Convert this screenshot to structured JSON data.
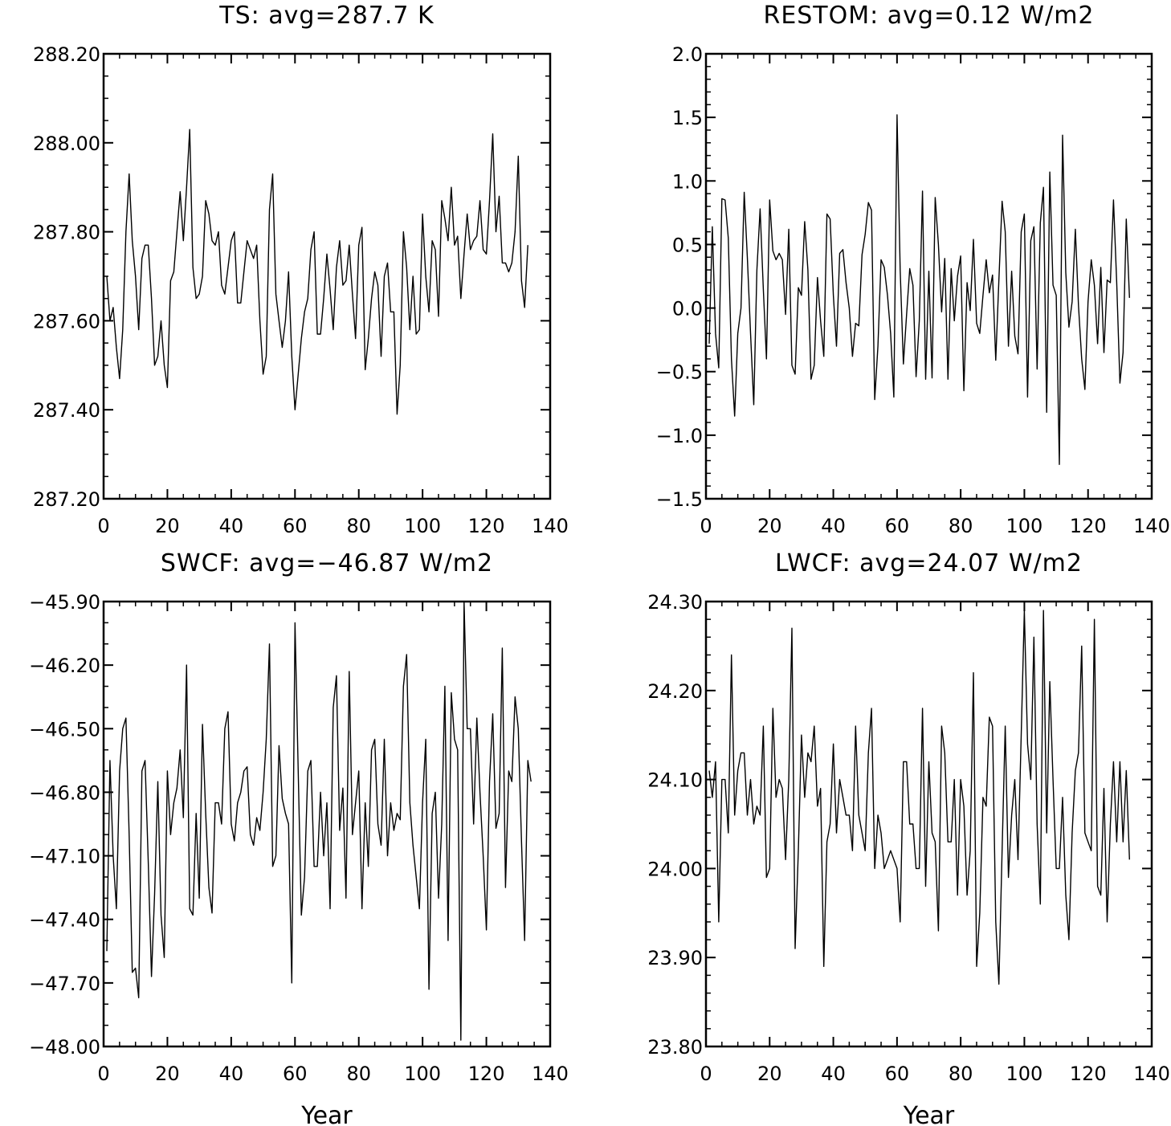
{
  "chart_data": [
    {
      "type": "line",
      "title": "TS: avg=287.7 K",
      "xlabel": "",
      "ylabel": "",
      "xlim": [
        0,
        140
      ],
      "ylim": [
        287.2,
        288.2
      ],
      "xticks": [
        0,
        20,
        40,
        60,
        80,
        100,
        120,
        140
      ],
      "xtick_labels": [
        "0",
        "20",
        "40",
        "60",
        "80",
        "100",
        "120",
        "140"
      ],
      "yticks": [
        287.2,
        287.4,
        287.6,
        287.8,
        288.0,
        288.2
      ],
      "ytick_labels": [
        "287.20",
        "287.40",
        "287.60",
        "287.80",
        "288.00",
        "288.20"
      ],
      "y_minor_step": 0.05,
      "x_start": 1,
      "x_step": 1,
      "values": [
        287.7,
        287.6,
        287.63,
        287.54,
        287.47,
        287.58,
        287.8,
        287.93,
        287.78,
        287.7,
        287.58,
        287.74,
        287.77,
        287.77,
        287.65,
        287.5,
        287.52,
        287.6,
        287.5,
        287.45,
        287.69,
        287.71,
        287.8,
        287.89,
        287.78,
        287.9,
        288.03,
        287.72,
        287.65,
        287.66,
        287.7,
        287.87,
        287.84,
        287.78,
        287.77,
        287.8,
        287.68,
        287.66,
        287.72,
        287.78,
        287.8,
        287.64,
        287.64,
        287.71,
        287.78,
        287.76,
        287.74,
        287.77,
        287.6,
        287.48,
        287.52,
        287.85,
        287.93,
        287.66,
        287.6,
        287.54,
        287.6,
        287.71,
        287.52,
        287.4,
        287.48,
        287.56,
        287.62,
        287.65,
        287.76,
        287.8,
        287.57,
        287.57,
        287.65,
        287.75,
        287.67,
        287.58,
        287.72,
        287.78,
        287.68,
        287.69,
        287.77,
        287.66,
        287.56,
        287.77,
        287.81,
        287.49,
        287.56,
        287.65,
        287.71,
        287.68,
        287.52,
        287.7,
        287.73,
        287.62,
        287.62,
        287.39,
        287.5,
        287.8,
        287.72,
        287.58,
        287.7,
        287.57,
        287.58,
        287.84,
        287.7,
        287.62,
        287.78,
        287.76,
        287.61,
        287.87,
        287.83,
        287.78,
        287.9,
        287.77,
        287.79,
        287.65,
        287.75,
        287.84,
        287.76,
        287.78,
        287.79,
        287.87,
        287.76,
        287.75,
        287.87,
        288.02,
        287.8,
        287.88,
        287.73,
        287.73,
        287.71,
        287.73,
        287.8,
        287.97,
        287.69,
        287.63,
        287.77
      ]
    },
    {
      "type": "line",
      "title": "RESTOM: avg=0.12 W/m2",
      "xlabel": "",
      "ylabel": "",
      "xlim": [
        0,
        140
      ],
      "ylim": [
        -1.5,
        2.0
      ],
      "xticks": [
        0,
        20,
        40,
        60,
        80,
        100,
        120,
        140
      ],
      "xtick_labels": [
        "0",
        "20",
        "40",
        "60",
        "80",
        "100",
        "120",
        "140"
      ],
      "yticks": [
        -1.5,
        -1.0,
        -0.5,
        0.0,
        0.5,
        1.0,
        1.5,
        2.0
      ],
      "ytick_labels": [
        "−1.5",
        "−1.0",
        "−0.5",
        "0.0",
        "0.5",
        "1.0",
        "1.5",
        "2.0"
      ],
      "y_minor_step": 0.1,
      "x_start": 1,
      "x_step": 1,
      "values": [
        -0.28,
        0.64,
        -0.2,
        -0.47,
        0.86,
        0.85,
        0.55,
        -0.4,
        -0.85,
        -0.2,
        0.0,
        0.91,
        0.4,
        -0.2,
        -0.76,
        0.3,
        0.78,
        0.15,
        -0.4,
        0.85,
        0.45,
        0.38,
        0.43,
        0.38,
        -0.05,
        0.62,
        -0.45,
        -0.52,
        0.16,
        0.1,
        0.68,
        0.3,
        -0.56,
        -0.45,
        0.24,
        -0.1,
        -0.38,
        0.74,
        0.7,
        0.1,
        -0.3,
        0.43,
        0.46,
        0.2,
        0.0,
        -0.38,
        -0.12,
        -0.14,
        0.42,
        0.58,
        0.83,
        0.77,
        -0.72,
        -0.3,
        0.38,
        0.32,
        0.1,
        -0.2,
        -0.7,
        1.52,
        0.3,
        -0.44,
        -0.05,
        0.31,
        0.18,
        -0.54,
        -0.1,
        0.92,
        -0.56,
        0.29,
        -0.55,
        0.87,
        0.5,
        -0.03,
        0.39,
        -0.56,
        0.31,
        -0.1,
        0.25,
        0.41,
        -0.65,
        0.2,
        -0.02,
        0.54,
        -0.12,
        -0.2,
        0.1,
        0.38,
        0.12,
        0.26,
        -0.41,
        0.22,
        0.84,
        0.6,
        -0.3,
        0.29,
        -0.22,
        -0.36,
        0.6,
        0.74,
        -0.7,
        0.53,
        0.64,
        -0.48,
        0.67,
        0.95,
        -0.82,
        1.07,
        0.18,
        0.1,
        -1.23,
        1.36,
        0.28,
        -0.15,
        0.05,
        0.62,
        0.02,
        -0.4,
        -0.64,
        0.05,
        0.38,
        0.18,
        -0.28,
        0.32,
        -0.35,
        0.22,
        0.2,
        0.85,
        0.2,
        -0.59,
        -0.35,
        0.7,
        0.08
      ]
    },
    {
      "type": "line",
      "title": "SWCF: avg=−46.87 W/m2",
      "xlabel": "Year",
      "ylabel": "",
      "xlim": [
        0,
        140
      ],
      "ylim": [
        -48.0,
        -45.9
      ],
      "xticks": [
        0,
        20,
        40,
        60,
        80,
        100,
        120,
        140
      ],
      "xtick_labels": [
        "0",
        "20",
        "40",
        "60",
        "80",
        "100",
        "120",
        "140"
      ],
      "yticks": [
        -48.0,
        -47.7,
        -47.4,
        -47.1,
        -46.8,
        -46.5,
        -46.2,
        -45.9
      ],
      "ytick_labels": [
        "−48.00",
        "−47.70",
        "−47.40",
        "−47.10",
        "−46.80",
        "−46.50",
        "−46.20",
        "−45.90"
      ],
      "y_minor_step": 0.1,
      "x_start": 1,
      "x_step": 1,
      "values": [
        -47.55,
        -46.65,
        -47.1,
        -47.35,
        -46.7,
        -46.5,
        -46.45,
        -47.0,
        -47.65,
        -47.63,
        -47.77,
        -46.7,
        -46.65,
        -47.13,
        -47.67,
        -47.28,
        -46.75,
        -47.38,
        -47.58,
        -46.7,
        -47.0,
        -46.85,
        -46.78,
        -46.6,
        -46.92,
        -46.2,
        -47.35,
        -47.38,
        -46.9,
        -47.3,
        -46.48,
        -46.9,
        -47.25,
        -47.37,
        -46.85,
        -46.85,
        -46.95,
        -46.5,
        -46.42,
        -46.95,
        -47.03,
        -46.85,
        -46.8,
        -46.7,
        -46.68,
        -47.0,
        -47.05,
        -46.92,
        -46.98,
        -46.8,
        -46.55,
        -46.1,
        -47.15,
        -47.1,
        -46.58,
        -46.83,
        -46.9,
        -46.95,
        -47.7,
        -46.0,
        -46.7,
        -47.38,
        -47.2,
        -46.7,
        -46.65,
        -47.15,
        -47.15,
        -46.8,
        -47.1,
        -46.85,
        -47.35,
        -46.4,
        -46.25,
        -46.98,
        -46.78,
        -47.3,
        -46.23,
        -47.0,
        -46.85,
        -46.7,
        -47.35,
        -46.85,
        -47.15,
        -46.6,
        -46.55,
        -46.95,
        -47.05,
        -46.55,
        -47.1,
        -46.85,
        -46.98,
        -46.9,
        -46.93,
        -46.3,
        -46.15,
        -46.85,
        -47.05,
        -47.2,
        -47.35,
        -46.85,
        -46.55,
        -47.73,
        -46.9,
        -46.8,
        -47.3,
        -46.95,
        -46.3,
        -47.5,
        -46.33,
        -46.55,
        -46.6,
        -47.97,
        -45.9,
        -46.5,
        -46.5,
        -46.95,
        -46.45,
        -46.8,
        -47.1,
        -47.45,
        -46.75,
        -46.43,
        -46.97,
        -46.9,
        -46.12,
        -47.25,
        -46.7,
        -46.75,
        -46.35,
        -46.5,
        -47.03,
        -47.5,
        -46.65,
        -46.75
      ]
    },
    {
      "type": "line",
      "title": "LWCF: avg=24.07 W/m2",
      "xlabel": "Year",
      "ylabel": "",
      "xlim": [
        0,
        140
      ],
      "ylim": [
        23.8,
        24.3
      ],
      "xticks": [
        0,
        20,
        40,
        60,
        80,
        100,
        120,
        140
      ],
      "xtick_labels": [
        "0",
        "20",
        "40",
        "60",
        "80",
        "100",
        "120",
        "140"
      ],
      "yticks": [
        23.8,
        23.9,
        24.0,
        24.1,
        24.2,
        24.3
      ],
      "ytick_labels": [
        "23.80",
        "23.90",
        "24.00",
        "24.10",
        "24.20",
        "24.30"
      ],
      "y_minor_step": 0.02,
      "x_start": 1,
      "x_step": 1,
      "values": [
        24.11,
        24.08,
        24.12,
        23.94,
        24.1,
        24.1,
        24.04,
        24.24,
        24.06,
        24.11,
        24.13,
        24.13,
        24.06,
        24.1,
        24.05,
        24.07,
        24.06,
        24.16,
        23.99,
        24.0,
        24.18,
        24.08,
        24.1,
        24.09,
        24.01,
        24.1,
        24.27,
        23.91,
        24.02,
        24.15,
        24.08,
        24.13,
        24.12,
        24.16,
        24.07,
        24.09,
        23.89,
        24.03,
        24.05,
        24.14,
        24.04,
        24.1,
        24.08,
        24.06,
        24.06,
        24.02,
        24.16,
        24.06,
        24.04,
        24.02,
        24.13,
        24.18,
        24.0,
        24.06,
        24.04,
        24.0,
        24.01,
        24.02,
        24.01,
        24.0,
        23.94,
        24.12,
        24.12,
        24.05,
        24.05,
        24.0,
        24.0,
        24.18,
        23.98,
        24.12,
        24.04,
        24.03,
        23.93,
        24.16,
        24.13,
        24.03,
        24.03,
        24.1,
        23.97,
        24.1,
        24.07,
        23.97,
        24.02,
        24.22,
        23.89,
        23.95,
        24.08,
        24.07,
        24.17,
        24.16,
        23.94,
        23.87,
        24.02,
        24.16,
        23.99,
        24.06,
        24.1,
        24.01,
        24.15,
        24.29,
        24.14,
        24.1,
        24.26,
        24.05,
        23.96,
        24.29,
        24.04,
        24.21,
        24.1,
        24.0,
        24.0,
        24.08,
        23.97,
        23.92,
        24.04,
        24.11,
        24.13,
        24.25,
        24.04,
        24.03,
        24.02,
        24.28,
        23.98,
        23.97,
        24.09,
        23.94,
        24.05,
        24.12,
        24.03,
        24.12,
        24.03,
        24.11,
        24.01
      ]
    }
  ]
}
